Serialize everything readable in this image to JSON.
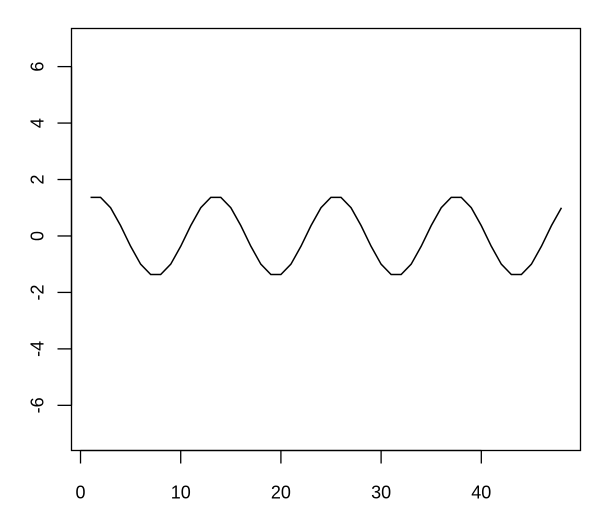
{
  "chart_data": {
    "type": "line",
    "title": "",
    "xlabel": "",
    "ylabel": "",
    "xlim": [
      -0.9,
      49.9
    ],
    "ylim": [
      -7.6,
      7.35
    ],
    "grid": false,
    "x_ticks": [
      0,
      10,
      20,
      30,
      40
    ],
    "x_tick_labels": [
      "0",
      "10",
      "20",
      "30",
      "40"
    ],
    "y_ticks": [
      -6,
      -4,
      -2,
      0,
      2,
      4,
      6
    ],
    "y_tick_labels": [
      "-6",
      "-4",
      "-2",
      "0",
      "2",
      "4",
      "6"
    ],
    "color": "#000000",
    "series": [
      {
        "x": [
          1,
          2,
          3,
          4,
          5,
          6,
          7,
          8,
          9,
          10,
          11,
          12,
          13,
          14,
          15,
          16,
          17,
          18,
          19,
          20,
          21,
          22,
          23,
          24,
          25,
          26,
          27,
          28,
          29,
          30,
          31,
          32,
          33,
          34,
          35,
          36,
          37,
          38,
          39,
          40,
          41,
          42,
          43,
          44,
          45,
          46,
          47,
          48
        ],
        "y": [
          1.366,
          1.366,
          1,
          0.366,
          -0.366,
          -1,
          -1.366,
          -1.366,
          -1,
          -0.366,
          0.366,
          1,
          1.366,
          1.366,
          1,
          0.366,
          -0.366,
          -1,
          -1.366,
          -1.366,
          -1,
          -0.366,
          0.366,
          1,
          1.366,
          1.366,
          1,
          0.366,
          -0.366,
          -1,
          -1.366,
          -1.366,
          -1,
          -0.366,
          0.366,
          1,
          1.366,
          1.366,
          1,
          0.366,
          -0.366,
          -1,
          -1.366,
          -1.366,
          -1,
          -0.366,
          0.366,
          1
        ]
      }
    ]
  }
}
